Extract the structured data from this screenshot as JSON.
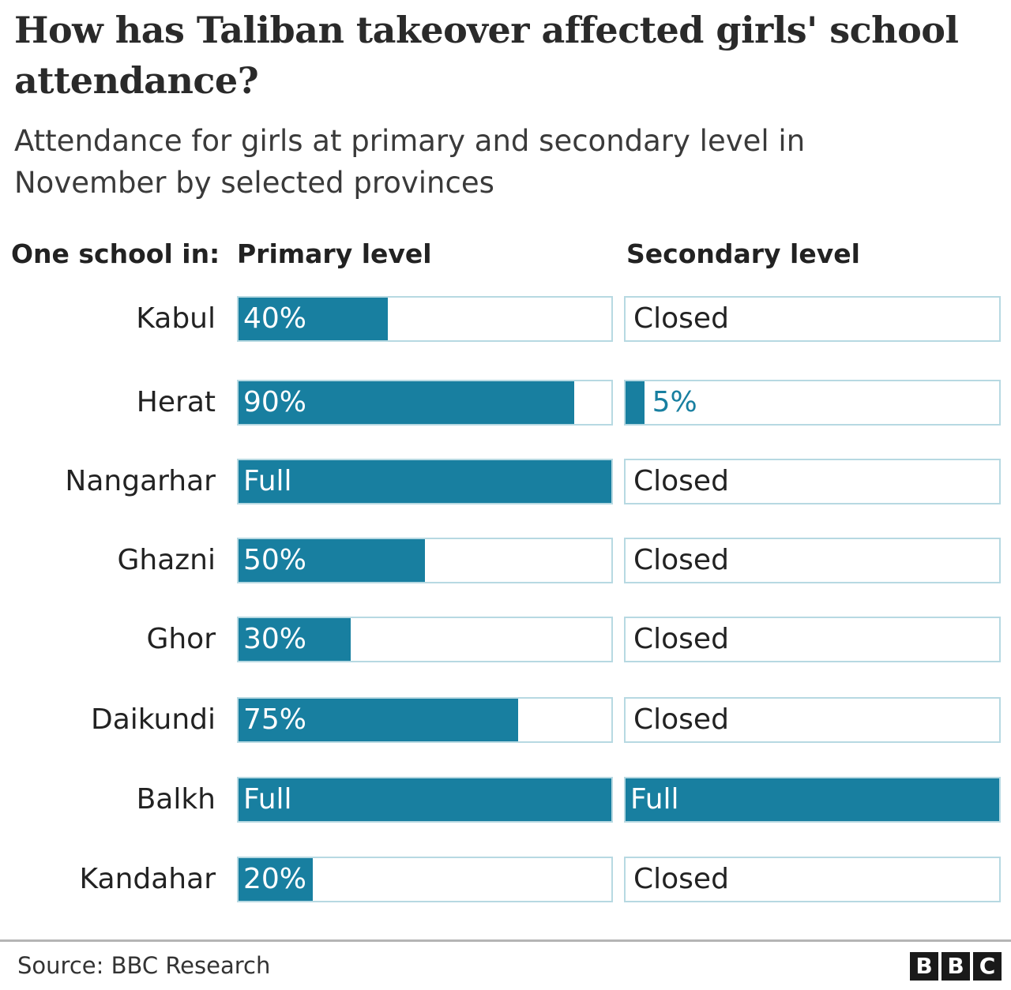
{
  "header": {
    "title": "How has Taliban takeover affected girls' school attendance?",
    "subtitle": "Attendance for girls at primary and secondary level in November by selected provinces"
  },
  "columns": {
    "label": "One school in:",
    "primary": "Primary level",
    "secondary": "Secondary level"
  },
  "rows": [
    {
      "province": "Kabul",
      "primary": "40%",
      "primary_pct": 40,
      "secondary": "Closed",
      "secondary_pct": 0
    },
    {
      "province": "Herat",
      "primary": "90%",
      "primary_pct": 90,
      "secondary": "5%",
      "secondary_pct": 5
    },
    {
      "province": "Nangarhar",
      "primary": "Full",
      "primary_pct": 100,
      "secondary": "Closed",
      "secondary_pct": 0
    },
    {
      "province": "Ghazni",
      "primary": "50%",
      "primary_pct": 50,
      "secondary": "Closed",
      "secondary_pct": 0
    },
    {
      "province": "Ghor",
      "primary": "30%",
      "primary_pct": 30,
      "secondary": "Closed",
      "secondary_pct": 0
    },
    {
      "province": "Daikundi",
      "primary": "75%",
      "primary_pct": 75,
      "secondary": "Closed",
      "secondary_pct": 0
    },
    {
      "province": "Balkh",
      "primary": "Full",
      "primary_pct": 100,
      "secondary": "Full",
      "secondary_pct": 100
    },
    {
      "province": "Kandahar",
      "primary": "20%",
      "primary_pct": 20,
      "secondary": "Closed",
      "secondary_pct": 0
    }
  ],
  "footer": {
    "source": "Source: BBC Research",
    "logo": [
      "B",
      "B",
      "C"
    ]
  },
  "colors": {
    "bar_fill": "#187fa0",
    "bar_border": "#b7d9e2"
  },
  "chart_data": {
    "type": "bar",
    "orientation": "horizontal",
    "title": "How has Taliban takeover affected girls' school attendance?",
    "subtitle": "Attendance for girls at primary and secondary level in November by selected provinces",
    "categories": [
      "Kabul",
      "Herat",
      "Nangarhar",
      "Ghazni",
      "Ghor",
      "Daikundi",
      "Balkh",
      "Kandahar"
    ],
    "series": [
      {
        "name": "Primary level",
        "values": [
          40,
          90,
          100,
          50,
          30,
          75,
          100,
          20
        ],
        "labels": [
          "40%",
          "90%",
          "Full",
          "50%",
          "30%",
          "75%",
          "Full",
          "20%"
        ]
      },
      {
        "name": "Secondary level",
        "values": [
          0,
          5,
          0,
          0,
          0,
          0,
          100,
          0
        ],
        "labels": [
          "Closed",
          "5%",
          "Closed",
          "Closed",
          "Closed",
          "Closed",
          "Full",
          "Closed"
        ]
      }
    ],
    "xlabel": "",
    "ylabel": "One school in:",
    "xlim": [
      0,
      100
    ],
    "grid": false,
    "source": "Source: BBC Research"
  }
}
